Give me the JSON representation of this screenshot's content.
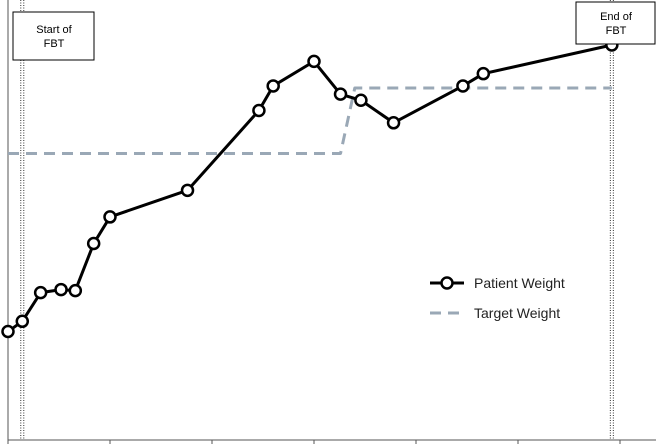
{
  "chart_data": {
    "type": "line",
    "title": "",
    "xlabel": "",
    "ylabel": "",
    "grid": false,
    "legend_position": "right",
    "xlim": [
      0,
      30
    ],
    "ylim": [
      0,
      21.5
    ],
    "x_ticks": [
      0,
      5,
      10,
      15,
      20,
      25,
      30
    ],
    "x_tick_labels_shown": false,
    "y_tick_labels_shown": false,
    "series": [
      {
        "name": "Patient Weight",
        "style": "solid-with-circle-markers",
        "color": "#000000",
        "x": [
          0,
          0.7,
          1.6,
          2.6,
          3.3,
          4.2,
          5.0,
          8.8,
          12.3,
          13.0,
          15.0,
          16.3,
          17.3,
          18.9,
          22.3,
          23.3,
          29.6
        ],
        "y": [
          5.3,
          5.8,
          7.2,
          7.35,
          7.3,
          9.6,
          10.9,
          12.2,
          16.1,
          17.3,
          18.5,
          16.9,
          16.6,
          15.5,
          17.3,
          17.9,
          19.3
        ]
      },
      {
        "name": "Target Weight",
        "style": "dashed",
        "color": "#9aa8b6",
        "x": [
          0,
          16.3,
          17.0,
          29.6
        ],
        "y": [
          14.0,
          14.0,
          17.2,
          17.2
        ]
      }
    ],
    "annotations": [
      {
        "x": 0.7,
        "lines": [
          "Start of",
          "FBT"
        ]
      },
      {
        "x": 29.6,
        "lines": [
          "End of",
          "FBT"
        ]
      }
    ]
  }
}
